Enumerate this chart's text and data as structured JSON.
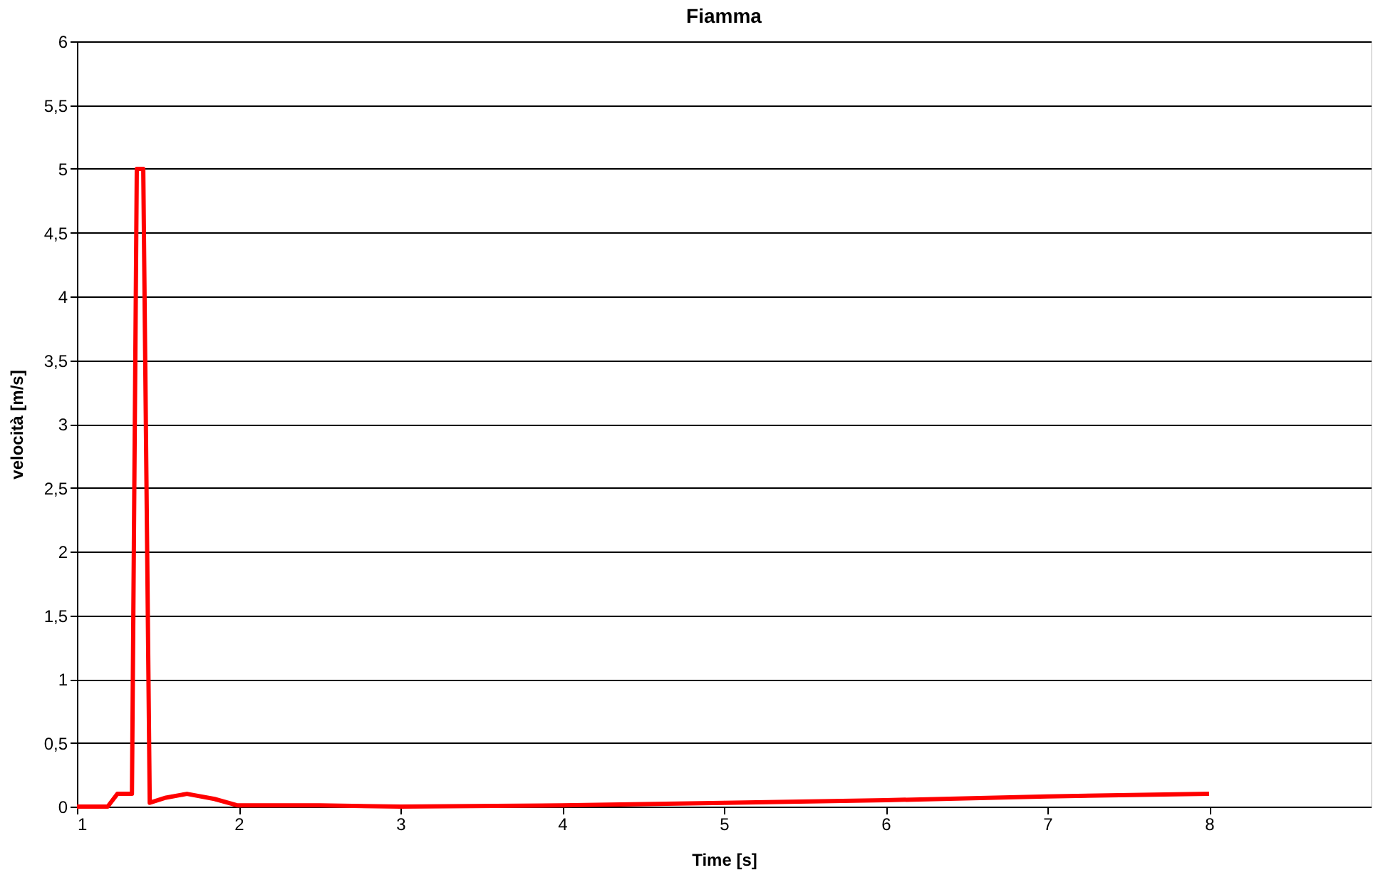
{
  "chart_data": {
    "type": "line",
    "title": "Fiamma",
    "xlabel": "Time [s]",
    "ylabel": "velocità [m/s]",
    "x": [
      1,
      1.19,
      1.25,
      1.34,
      1.37,
      1.41,
      1.45,
      1.55,
      1.68,
      1.85,
      1.99,
      2.5,
      3,
      4,
      5,
      6,
      7,
      8
    ],
    "series": [
      {
        "color": "#ff0000",
        "values": [
          0,
          0,
          0.1,
          0.1,
          5.0,
          5.0,
          0.03,
          0.07,
          0.1,
          0.06,
          0.01,
          0.01,
          0,
          0.01,
          0.03,
          0.05,
          0.08,
          0.1
        ]
      }
    ],
    "xlim": [
      1,
      9
    ],
    "xticks": [
      1,
      2,
      3,
      4,
      5,
      6,
      7,
      8
    ],
    "ylim": [
      0,
      6
    ],
    "yticks": [
      0,
      {
        "value": 0.5,
        "label": "0,5"
      },
      1,
      {
        "value": 1.5,
        "label": "1,5"
      },
      2,
      {
        "value": 2.5,
        "label": "2,5"
      },
      3,
      {
        "value": 3.5,
        "label": "3,5"
      },
      4,
      {
        "value": 4.5,
        "label": "4,5"
      },
      5,
      {
        "value": 5.5,
        "label": "5,5"
      },
      6
    ],
    "grid": "y",
    "marker": "none",
    "line_style": "solid"
  }
}
